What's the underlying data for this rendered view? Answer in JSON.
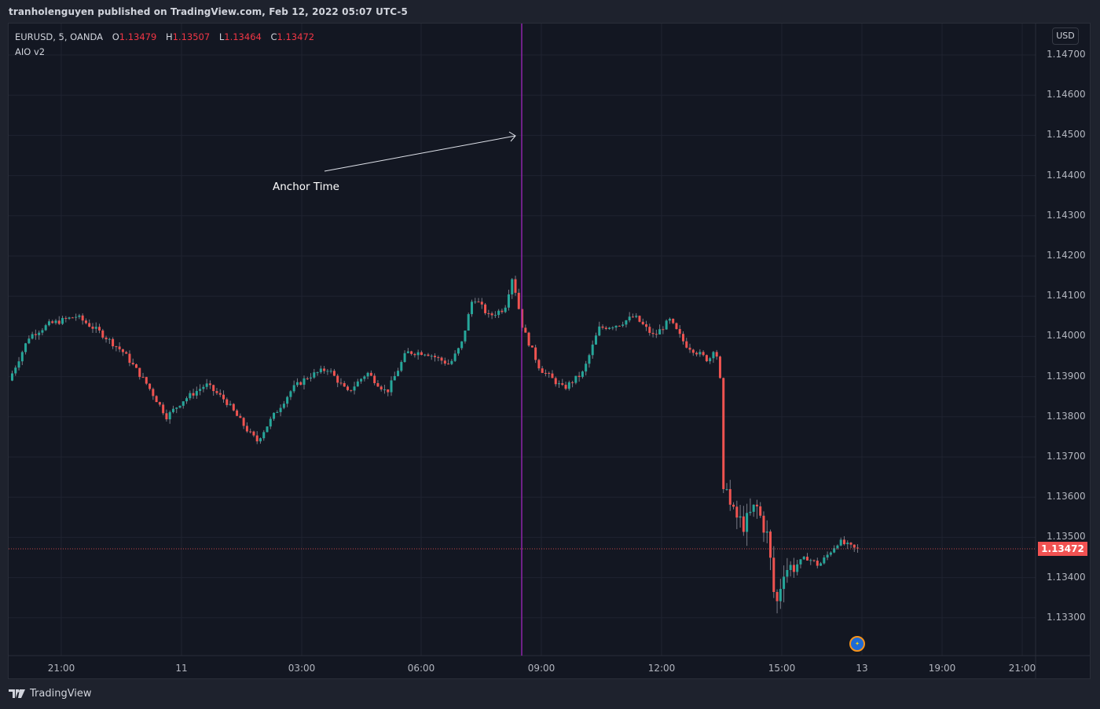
{
  "header": {
    "published": "tranholenguyen published on TradingView.com, Feb 12, 2022 05:07 UTC-5"
  },
  "legend": {
    "symbol": "EURUSD, 5, OANDA",
    "o_label": "O",
    "o_value": "1.13479",
    "h_label": "H",
    "h_value": "1.13507",
    "l_label": "L",
    "l_value": "1.13464",
    "c_label": "C",
    "c_value": "1.13472",
    "indicator": "AIO v2"
  },
  "currency_button": "USD",
  "last_price": "1.13472",
  "annotation": {
    "text": "Anchor Time",
    "icon": "arrow-icon"
  },
  "event_icon": "eu-flag-icon",
  "footer": {
    "brand": "TradingView",
    "logo": "tradingview-logo-icon"
  },
  "colors": {
    "up": "#26a69a",
    "down": "#ef5350",
    "anchor_line": "#9c27b0",
    "background": "#131722",
    "grid": "#1f2330",
    "price_tag": "#f25252"
  },
  "chart_data": {
    "type": "candlestick",
    "title": "EURUSD, 5, OANDA",
    "symbol": "EURUSD",
    "interval": "5",
    "exchange": "OANDA",
    "ylabel": "USD",
    "ylim": [
      1.1322,
      1.1476
    ],
    "y_ticks": [
      "1.14700",
      "1.14600",
      "1.14500",
      "1.14400",
      "1.14300",
      "1.14200",
      "1.14100",
      "1.14000",
      "1.13900",
      "1.13800",
      "1.13700",
      "1.13600",
      "1.13500",
      "1.13400",
      "1.13300"
    ],
    "x_ticks": [
      "21:00",
      "11",
      "03:00",
      "06:00",
      "09:00",
      "12:00",
      "15:00",
      "13",
      "19:00",
      "21:00"
    ],
    "grid": true,
    "last_ohlc": {
      "open": 1.13479,
      "high": 1.13507,
      "low": 1.13464,
      "close": 1.13472
    },
    "annotations": [
      {
        "type": "vertical_line",
        "label": "Anchor Time",
        "time": "~08:30"
      }
    ],
    "shape_keypoints": [
      {
        "time": "20:10",
        "price": 1.1392
      },
      {
        "time": "21:00",
        "price": 1.1402
      },
      {
        "time": "22:00",
        "price": 1.1405
      },
      {
        "time": "23:00",
        "price": 1.14
      },
      {
        "time": "00:00",
        "price": 1.1384
      },
      {
        "time": "01:00",
        "price": 1.1388
      },
      {
        "time": "02:00",
        "price": 1.1375
      },
      {
        "time": "03:00",
        "price": 1.1392
      },
      {
        "time": "04:00",
        "price": 1.1393
      },
      {
        "time": "05:00",
        "price": 1.139
      },
      {
        "time": "06:00",
        "price": 1.1398
      },
      {
        "time": "07:00",
        "price": 1.1397
      },
      {
        "time": "07:40",
        "price": 1.141
      },
      {
        "time": "08:20",
        "price": 1.1417
      },
      {
        "time": "09:00",
        "price": 1.1393
      },
      {
        "time": "10:00",
        "price": 1.139
      },
      {
        "time": "11:00",
        "price": 1.1403
      },
      {
        "time": "12:00",
        "price": 1.14
      },
      {
        "time": "13:20",
        "price": 1.1399
      },
      {
        "time": "13:40",
        "price": 1.1362
      },
      {
        "time": "14:30",
        "price": 1.1355
      },
      {
        "time": "14:50",
        "price": 1.1331
      },
      {
        "time": "15:30",
        "price": 1.1342
      },
      {
        "time": "16:30",
        "price": 1.1347
      }
    ]
  }
}
